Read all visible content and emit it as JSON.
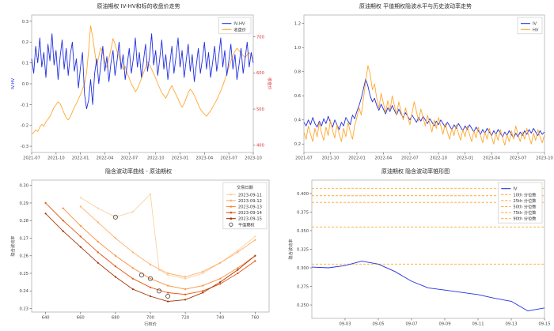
{
  "page": {
    "background": "#ffffff"
  },
  "colors": {
    "blue": "#2030e0",
    "orange": "#ffa72e",
    "red": "#dd3333",
    "spine": "#b3b3b3",
    "tick_text": "#444444"
  },
  "chart_data": [
    {
      "type": "line",
      "title": "原油期权 IV-HV和标的收盘价走势",
      "xlim": [
        0,
        109
      ],
      "xticks": {
        "values": [
          0,
          12,
          24,
          36,
          48,
          61,
          73,
          85,
          97,
          109
        ],
        "labels": [
          "2021-07",
          "2021-10",
          "2022-01",
          "2022-04",
          "2022-07",
          "2022-10",
          "2023-01",
          "2023-04",
          "2023-07",
          "2023-10"
        ]
      },
      "left_axis": {
        "lim": [
          -0.33,
          0.33
        ],
        "ticks": [
          -0.3,
          -0.2,
          -0.1,
          0,
          0.1,
          0.2,
          0.3
        ],
        "labels": [
          "-0.3",
          "-0.2",
          "-0.1",
          "0.0",
          "0.1",
          "0.2",
          "0.3"
        ],
        "label": "IV-HV",
        "label_color": "#2030e0"
      },
      "right_axis": {
        "lim": [
          380,
          760
        ],
        "ticks": [
          400,
          500,
          600,
          700
        ],
        "labels": [
          "400",
          "500",
          "600",
          "700"
        ],
        "label": "收盘价",
        "label_color": "#dd3333",
        "tick_color": "#dd3333"
      },
      "legend": {
        "entries": [
          {
            "label": "IV-HV",
            "color": "#2030e0"
          },
          {
            "label": "收盘价",
            "color": "#ffa72e"
          }
        ]
      },
      "series": [
        {
          "name": "收盘价",
          "axis": "right",
          "color": "#ffa72e",
          "values": [
            430,
            436,
            442,
            438,
            450,
            458,
            452,
            465,
            472,
            480,
            492,
            505,
            512,
            520,
            515,
            502,
            488,
            476,
            470,
            478,
            492,
            505,
            515,
            528,
            540,
            555,
            570,
            600,
            660,
            730,
            700,
            660,
            620,
            645,
            670,
            655,
            630,
            615,
            640,
            665,
            695,
            680,
            660,
            645,
            625,
            610,
            618,
            600,
            585,
            570,
            560,
            548,
            556,
            570,
            585,
            600,
            615,
            630,
            622,
            610,
            598,
            585,
            570,
            558,
            545,
            538,
            530,
            542,
            555,
            565,
            552,
            540,
            528,
            515,
            505,
            515,
            530,
            545,
            555,
            548,
            538,
            525,
            512,
            500,
            492,
            486,
            480,
            488,
            495,
            505,
            515,
            525,
            538,
            550,
            565,
            580,
            598,
            615,
            632,
            648,
            660,
            668,
            662,
            655,
            648,
            642,
            650,
            656,
            648,
            640
          ]
        },
        {
          "name": "IV-HV",
          "axis": "left",
          "color": "#2030e0",
          "values": [
            0.12,
            0.05,
            0.18,
            0.1,
            0.22,
            0.08,
            0.15,
            0.03,
            0.19,
            0.11,
            0.24,
            0.09,
            0.16,
            0.02,
            0.13,
            0.21,
            0.07,
            0.17,
            0.04,
            0.14,
            0.2,
            0.06,
            0.12,
            -0.02,
            0.08,
            0.15,
            -0.05,
            -0.12,
            -0.08,
            0.02,
            -0.1,
            0.05,
            0.12,
            0.0,
            0.09,
            0.18,
            0.06,
            0.13,
            0.01,
            0.1,
            0.16,
            0.04,
            0.11,
            0.2,
            0.07,
            0.14,
            0.02,
            0.09,
            0.17,
            0.05,
            0.12,
            0.22,
            0.08,
            0.15,
            0.03,
            0.11,
            0.19,
            0.06,
            0.13,
            0.24,
            0.09,
            0.16,
            0.04,
            0.12,
            0.21,
            0.07,
            0.14,
            0.02,
            0.1,
            0.18,
            0.05,
            0.13,
            0.22,
            0.08,
            0.16,
            0.03,
            0.11,
            0.19,
            0.06,
            0.14,
            0.01,
            0.09,
            0.17,
            0.05,
            0.12,
            0.2,
            0.07,
            0.15,
            0.03,
            0.1,
            0.18,
            0.06,
            0.13,
            0.22,
            0.08,
            0.16,
            0.04,
            0.11,
            0.19,
            0.07,
            0.14,
            0.02,
            0.09,
            0.17,
            0.05,
            0.12,
            0.2,
            0.08,
            0.15,
            0.1
          ]
        }
      ]
    },
    {
      "type": "line",
      "title": "原油期权 平值期权隐波水平与历史波动率走势",
      "xlim": [
        0,
        109
      ],
      "xticks": {
        "values": [
          0,
          12,
          24,
          36,
          48,
          61,
          73,
          85,
          97,
          109
        ],
        "labels": [
          "2021-07",
          "2021-10",
          "2022-01",
          "2022-04",
          "2022-07",
          "2022-10",
          "2023-01",
          "2023-04",
          "2023-07",
          "2023-10"
        ]
      },
      "left_axis": {
        "lim": [
          0.13,
          1.27
        ],
        "ticks": [
          0.2,
          0.4,
          0.6,
          0.8,
          1.0,
          1.2
        ],
        "labels": [
          "0.2",
          "0.4",
          "0.6",
          "0.8",
          "1.0",
          "1.2"
        ]
      },
      "legend": {
        "entries": [
          {
            "label": "IV",
            "color": "#2030e0"
          },
          {
            "label": "HV",
            "color": "#ffa72e"
          }
        ]
      },
      "series": [
        {
          "name": "IV",
          "axis": "left",
          "color": "#2030e0",
          "values": [
            0.38,
            0.35,
            0.4,
            0.36,
            0.42,
            0.37,
            0.34,
            0.39,
            0.35,
            0.41,
            0.37,
            0.43,
            0.38,
            0.34,
            0.4,
            0.36,
            0.32,
            0.38,
            0.35,
            0.42,
            0.39,
            0.36,
            0.44,
            0.41,
            0.47,
            0.52,
            0.58,
            0.66,
            0.74,
            0.68,
            0.6,
            0.55,
            0.58,
            0.52,
            0.48,
            0.53,
            0.49,
            0.45,
            0.5,
            0.47,
            0.52,
            0.48,
            0.44,
            0.49,
            0.45,
            0.42,
            0.46,
            0.43,
            0.4,
            0.44,
            0.41,
            0.38,
            0.42,
            0.39,
            0.43,
            0.4,
            0.37,
            0.41,
            0.38,
            0.35,
            0.39,
            0.36,
            0.4,
            0.37,
            0.34,
            0.38,
            0.35,
            0.32,
            0.36,
            0.33,
            0.37,
            0.34,
            0.31,
            0.35,
            0.32,
            0.36,
            0.33,
            0.3,
            0.34,
            0.31,
            0.28,
            0.32,
            0.29,
            0.33,
            0.3,
            0.27,
            0.31,
            0.28,
            0.32,
            0.29,
            0.26,
            0.3,
            0.27,
            0.31,
            0.28,
            0.25,
            0.29,
            0.26,
            0.3,
            0.27,
            0.31,
            0.28,
            0.32,
            0.29,
            0.33,
            0.3,
            0.27,
            0.31,
            0.28,
            0.3
          ]
        },
        {
          "name": "HV",
          "axis": "left",
          "color": "#ffa72e",
          "values": [
            0.3,
            0.24,
            0.35,
            0.28,
            0.22,
            0.33,
            0.26,
            0.38,
            0.29,
            0.23,
            0.34,
            0.27,
            0.4,
            0.31,
            0.25,
            0.36,
            0.28,
            0.22,
            0.33,
            0.26,
            0.38,
            0.3,
            0.24,
            0.35,
            0.42,
            0.5,
            0.44,
            0.58,
            0.72,
            0.85,
            0.78,
            0.65,
            0.7,
            0.58,
            0.5,
            0.62,
            0.54,
            0.46,
            0.56,
            0.48,
            0.6,
            0.52,
            0.44,
            0.55,
            0.47,
            0.4,
            0.5,
            0.43,
            0.36,
            0.46,
            0.55,
            0.47,
            0.39,
            0.49,
            0.42,
            0.35,
            0.44,
            0.37,
            0.3,
            0.4,
            0.33,
            0.42,
            0.35,
            0.28,
            0.37,
            0.3,
            0.24,
            0.33,
            0.27,
            0.36,
            0.29,
            0.23,
            0.32,
            0.26,
            0.35,
            0.28,
            0.22,
            0.31,
            0.25,
            0.34,
            0.27,
            0.21,
            0.3,
            0.24,
            0.33,
            0.26,
            0.2,
            0.29,
            0.23,
            0.32,
            0.25,
            0.19,
            0.28,
            0.22,
            0.31,
            0.24,
            0.35,
            0.28,
            0.22,
            0.3,
            0.24,
            0.33,
            0.26,
            0.2,
            0.29,
            0.23,
            0.32,
            0.26,
            0.21,
            0.28
          ]
        }
      ]
    },
    {
      "type": "line",
      "title": "隐含波动率曲线 - 原油期权",
      "xlabel": "行权价",
      "xlim": [
        632,
        768
      ],
      "xticks": {
        "values": [
          640,
          660,
          680,
          700,
          720,
          740,
          760
        ],
        "labels": [
          "640",
          "660",
          "680",
          "700",
          "720",
          "740",
          "760"
        ]
      },
      "left_axis": {
        "lim": [
          0.228,
          0.303
        ],
        "ticks": [
          0.23,
          0.24,
          0.25,
          0.26,
          0.27,
          0.28,
          0.29,
          0.3
        ],
        "labels": [
          "0.23",
          "0.24",
          "0.25",
          "0.26",
          "0.27",
          "0.28",
          "0.29",
          "0.30"
        ],
        "label": "隐含波动率"
      },
      "legend": {
        "title": "交易日期",
        "entries": [
          {
            "label": "2023-09-11",
            "color": "#fdd0a2",
            "point": true
          },
          {
            "label": "2023-09-12",
            "color": "#fdae6b",
            "point": true
          },
          {
            "label": "2023-09-13",
            "color": "#fd8d3c",
            "point": true
          },
          {
            "label": "2023-09-14",
            "color": "#e6550d",
            "point": true
          },
          {
            "label": "2023-09-15",
            "color": "#a63603",
            "point": true
          },
          {
            "label": "平值期权",
            "color": "#555555",
            "marker": "open-circle"
          }
        ]
      },
      "series": [
        {
          "name": "2023-09-11",
          "color": "#fdd0a2",
          "marker": true,
          "x": [
            660,
            670,
            680,
            690,
            700,
            705,
            710,
            720,
            730,
            740,
            750,
            760
          ],
          "values": [
            0.293,
            0.287,
            0.282,
            0.285,
            0.295,
            0.252,
            0.249,
            0.247,
            0.25,
            0.256,
            0.263,
            0.271
          ]
        },
        {
          "name": "2023-09-12",
          "color": "#fdae6b",
          "marker": true,
          "x": [
            660,
            670,
            680,
            690,
            700,
            710,
            720,
            730,
            740,
            750,
            760
          ],
          "values": [
            0.288,
            0.279,
            0.27,
            0.262,
            0.255,
            0.25,
            0.248,
            0.251,
            0.256,
            0.262,
            0.269
          ]
        },
        {
          "name": "2023-09-13",
          "color": "#fd8d3c",
          "marker": true,
          "x": [
            650,
            660,
            670,
            680,
            690,
            700,
            710,
            720,
            730,
            740,
            750,
            760
          ],
          "values": [
            0.287,
            0.277,
            0.268,
            0.26,
            0.253,
            0.247,
            0.243,
            0.241,
            0.243,
            0.247,
            0.253,
            0.26
          ]
        },
        {
          "name": "2023-09-14",
          "color": "#e6550d",
          "marker": true,
          "x": [
            640,
            650,
            660,
            670,
            680,
            690,
            700,
            710,
            720,
            730,
            740,
            750,
            760
          ],
          "values": [
            0.29,
            0.28,
            0.271,
            0.262,
            0.254,
            0.247,
            0.242,
            0.239,
            0.238,
            0.24,
            0.244,
            0.25,
            0.257
          ]
        },
        {
          "name": "2023-09-15",
          "color": "#a63603",
          "marker": true,
          "x": [
            640,
            650,
            660,
            670,
            680,
            690,
            700,
            710,
            720,
            730,
            740,
            750,
            760
          ],
          "values": [
            0.284,
            0.274,
            0.265,
            0.256,
            0.248,
            0.241,
            0.237,
            0.234,
            0.235,
            0.239,
            0.245,
            0.252,
            0.26
          ]
        }
      ],
      "atm_points": [
        {
          "x": 680,
          "y": 0.282
        },
        {
          "x": 695,
          "y": 0.249
        },
        {
          "x": 700,
          "y": 0.247
        },
        {
          "x": 705,
          "y": 0.24
        },
        {
          "x": 710,
          "y": 0.237
        }
      ]
    },
    {
      "type": "line",
      "title": "原油期权 隐含波动率锥形图",
      "xlim": [
        0,
        14
      ],
      "xticks": {
        "values": [
          2,
          4,
          6,
          8,
          10,
          12,
          14
        ],
        "labels": [
          "09-03",
          "09-05",
          "09-07",
          "09-09",
          "09-11",
          "09-13",
          "09-15"
        ]
      },
      "left_axis": {
        "lim": [
          0.232,
          0.418
        ],
        "ticks": [
          0.25,
          0.275,
          0.3,
          0.325,
          0.35,
          0.375,
          0.4
        ],
        "labels": [
          "0.250",
          "0.275",
          "0.300",
          "0.325",
          "0.350",
          "0.375",
          "0.400"
        ],
        "label": "隐含波动率"
      },
      "hlines": [
        {
          "label": "10th 分位数",
          "y": 0.305,
          "color": "#ffa72e",
          "dash": true
        },
        {
          "label": "25th 分位数",
          "y": 0.355,
          "color": "#ffa72e",
          "dash": true
        },
        {
          "label": "50th 分位数",
          "y": 0.388,
          "color": "#ffa72e",
          "dash": true
        },
        {
          "label": "75th 分位数",
          "y": 0.397,
          "color": "#ffa72e",
          "dash": true
        },
        {
          "label": "90th 分位数",
          "y": 0.407,
          "color": "#ffa72e",
          "dash": true
        }
      ],
      "legend": {
        "entries": [
          {
            "label": "IV",
            "color": "#2030e0"
          },
          {
            "label": "10th 分位数",
            "color": "#ffa72e",
            "dash": true
          },
          {
            "label": "25th 分位数",
            "color": "#ffa72e",
            "dash": true
          },
          {
            "label": "50th 分位数",
            "color": "#ffa72e",
            "dash": true
          },
          {
            "label": "75th 分位数",
            "color": "#ffa72e",
            "dash": true
          },
          {
            "label": "90th 分位数",
            "color": "#ffa72e",
            "dash": true
          }
        ]
      },
      "series": [
        {
          "name": "IV",
          "axis": "left",
          "color": "#2030e0",
          "values": [
            0.301,
            0.3,
            0.303,
            0.309,
            0.305,
            0.295,
            0.282,
            0.273,
            0.27,
            0.267,
            0.264,
            0.259,
            0.255,
            0.242,
            0.246
          ]
        }
      ]
    }
  ]
}
